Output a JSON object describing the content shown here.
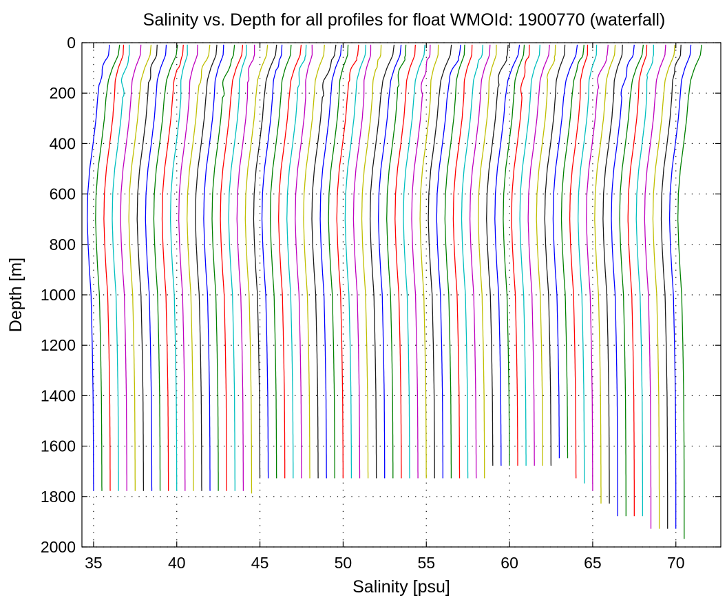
{
  "chart_data": {
    "type": "line",
    "title": "Salinity vs. Depth for all profiles for float WMOId: 1900770 (waterfall)",
    "xlabel": "Salinity [psu]",
    "ylabel": "Depth [m]",
    "xlim": [
      34.3,
      72.7
    ],
    "ylim": [
      0,
      2000
    ],
    "y_reversed": true,
    "grid": true,
    "xticks": [
      35,
      40,
      45,
      50,
      55,
      60,
      65,
      70
    ],
    "yticks": [
      0,
      200,
      400,
      600,
      800,
      1000,
      1200,
      1400,
      1600,
      1800,
      2000
    ],
    "waterfall": {
      "profile_count": 72,
      "x_offset_step": 0.5,
      "first_profile_deep_salinity": 35.0
    },
    "representative_profile": {
      "depth": [
        0,
        50,
        100,
        150,
        200,
        300,
        400,
        500,
        600,
        700,
        800,
        900,
        1000,
        1200,
        1400,
        1600,
        1800
      ],
      "salinity_anomaly": [
        0.9,
        0.85,
        0.55,
        0.35,
        0.3,
        0.18,
        0.0,
        -0.2,
        -0.32,
        -0.35,
        -0.3,
        -0.22,
        -0.12,
        -0.05,
        0.0,
        0.02,
        0.03
      ]
    },
    "max_depths": [
      1780,
      1780,
      1780,
      1780,
      1780,
      1780,
      1780,
      1780,
      1780,
      1780,
      1780,
      1780,
      1780,
      1780,
      1780,
      1780,
      1780,
      1780,
      1780,
      1795,
      1730,
      1730,
      1730,
      1730,
      1730,
      1730,
      1730,
      1730,
      1730,
      1730,
      1730,
      1730,
      1730,
      1730,
      1730,
      1730,
      1730,
      1730,
      1730,
      1730,
      1730,
      1730,
      1730,
      1730,
      1730,
      1730,
      1730,
      1730,
      1680,
      1680,
      1680,
      1680,
      1680,
      1680,
      1680,
      1680,
      1650,
      1650,
      1730,
      1750,
      1780,
      1830,
      1830,
      1880,
      1880,
      1880,
      1880,
      1930,
      1930,
      1930,
      1930,
      1975
    ],
    "series_colors": [
      "#0000ff",
      "#008000",
      "#ff0000",
      "#00bfbf",
      "#bf00bf",
      "#bfbf00",
      "#1a1a1a"
    ]
  }
}
